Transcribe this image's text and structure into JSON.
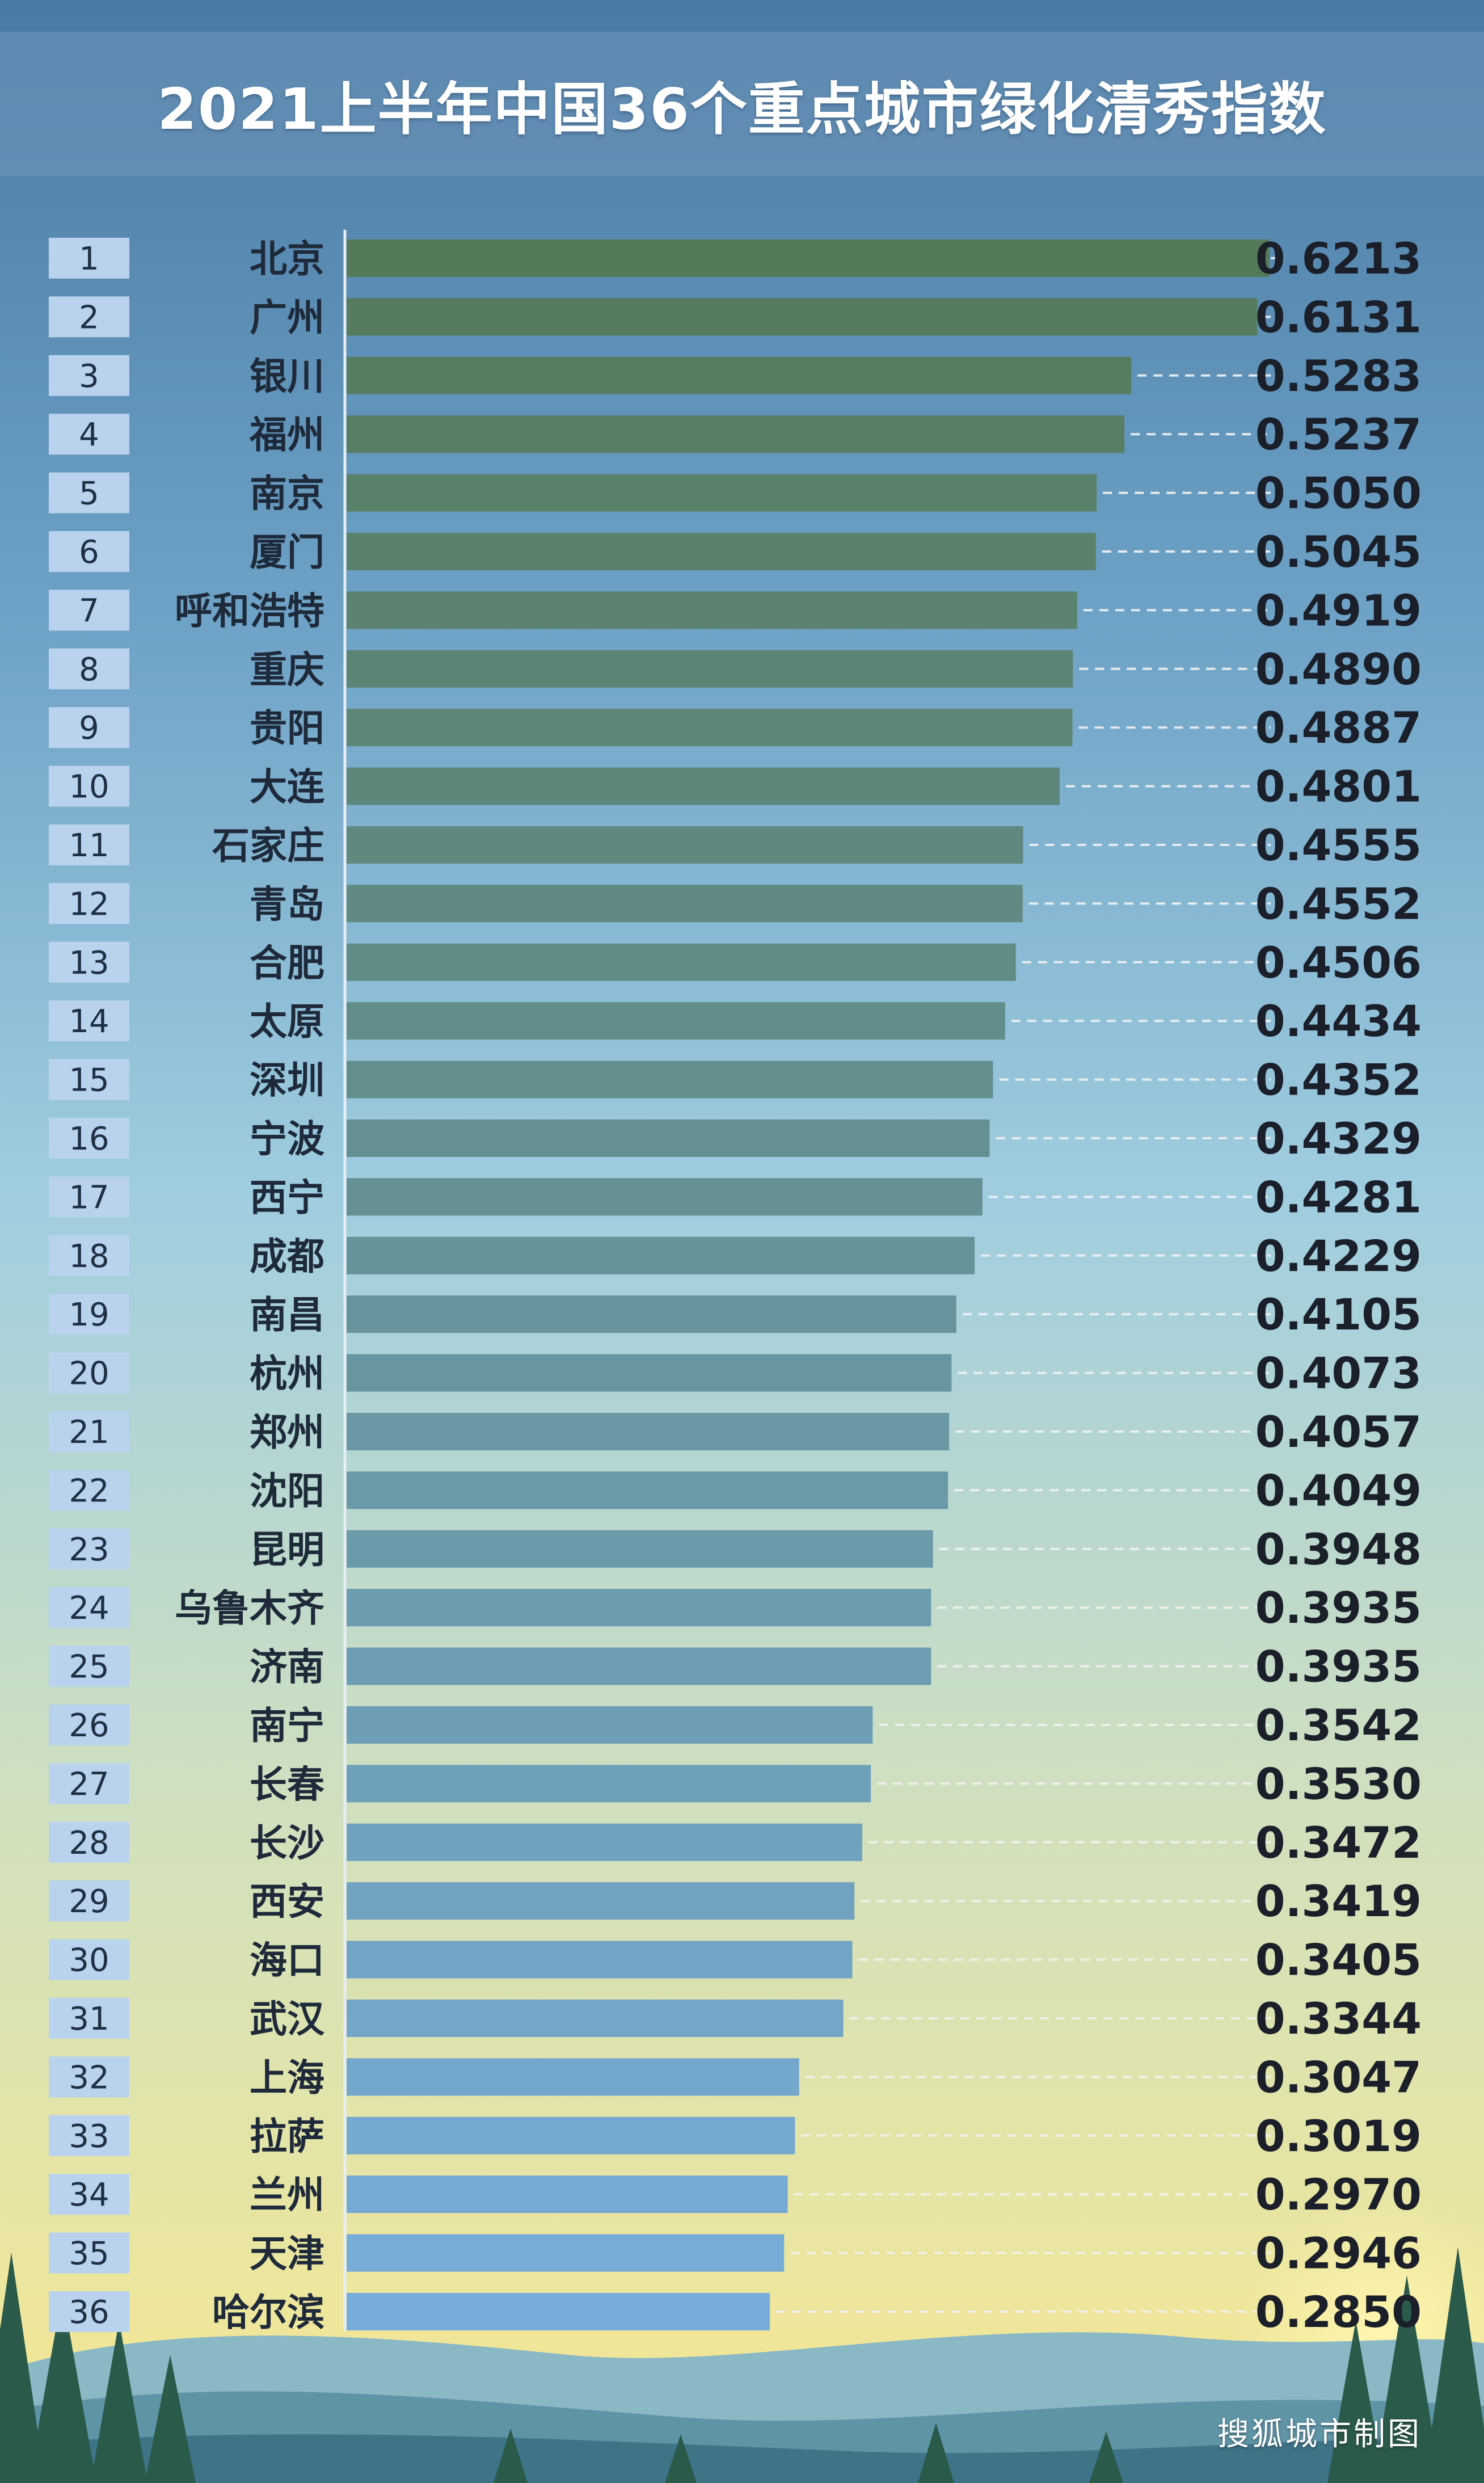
{
  "chart_data": {
    "type": "bar",
    "orientation": "horizontal",
    "title": "2021上半年中国36个重点城市绿化清秀指数",
    "xlim": [
      0,
      0.7
    ],
    "categories": [
      "北京",
      "广州",
      "银川",
      "福州",
      "南京",
      "厦门",
      "呼和浩特",
      "重庆",
      "贵阳",
      "大连",
      "石家庄",
      "青岛",
      "合肥",
      "太原",
      "深圳",
      "宁波",
      "西宁",
      "成都",
      "南昌",
      "杭州",
      "郑州",
      "沈阳",
      "昆明",
      "乌鲁木齐",
      "济南",
      "南宁",
      "长春",
      "长沙",
      "西安",
      "海口",
      "武汉",
      "上海",
      "拉萨",
      "兰州",
      "天津",
      "哈尔滨"
    ],
    "ranks": [
      "1",
      "2",
      "3",
      "4",
      "5",
      "6",
      "7",
      "8",
      "9",
      "10",
      "11",
      "12",
      "13",
      "14",
      "15",
      "16",
      "17",
      "18",
      "19",
      "20",
      "21",
      "22",
      "23",
      "24",
      "25",
      "26",
      "27",
      "28",
      "29",
      "30",
      "31",
      "32",
      "33",
      "34",
      "35",
      "36"
    ],
    "values": [
      0.6213,
      0.6131,
      0.5283,
      0.5237,
      0.505,
      0.5045,
      0.4919,
      0.489,
      0.4887,
      0.4801,
      0.4555,
      0.4552,
      0.4506,
      0.4434,
      0.4352,
      0.4329,
      0.4281,
      0.4229,
      0.4105,
      0.4073,
      0.4057,
      0.4049,
      0.3948,
      0.3935,
      0.3935,
      0.3542,
      0.353,
      0.3472,
      0.3419,
      0.3405,
      0.3344,
      0.3047,
      0.3019,
      0.297,
      0.2946,
      0.285
    ],
    "value_labels": [
      "0.6213",
      "0.6131",
      "0.5283",
      "0.5237",
      "0.5050",
      "0.5045",
      "0.4919",
      "0.4890",
      "0.4887",
      "0.4801",
      "0.4555",
      "0.4552",
      "0.4506",
      "0.4434",
      "0.4352",
      "0.4329",
      "0.4281",
      "0.4229",
      "0.4105",
      "0.4073",
      "0.4057",
      "0.4049",
      "0.3948",
      "0.3935",
      "0.3935",
      "0.3542",
      "0.3530",
      "0.3472",
      "0.3419",
      "0.3405",
      "0.3344",
      "0.3047",
      "0.3019",
      "0.2970",
      "0.2946",
      "0.2850"
    ],
    "bar_color_top": "#557a5a",
    "bar_color_bottom": "#78addb",
    "rank_box_color": "#b9d3ee"
  },
  "credit": "搜狐城市制图"
}
